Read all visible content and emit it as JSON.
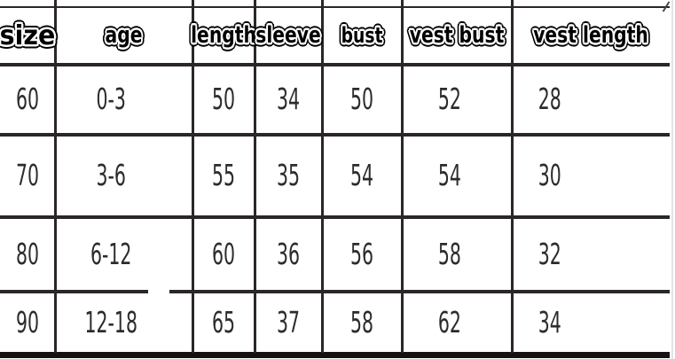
{
  "chart_data": {
    "type": "table",
    "columns": [
      "size",
      "age",
      "length",
      "sleeve",
      "bust",
      "vest bust",
      "vest length"
    ],
    "rows": [
      [
        "60",
        "0-3",
        "50",
        "34",
        "50",
        "52",
        "28"
      ],
      [
        "70",
        "3-6",
        "55",
        "35",
        "54",
        "54",
        "30"
      ],
      [
        "80",
        "6-12",
        "60",
        "36",
        "56",
        "58",
        "32"
      ],
      [
        "90",
        "12-18",
        "65",
        "37",
        "58",
        "62",
        "34"
      ]
    ],
    "layout": {
      "grid": "on",
      "header_style": "black text with white outline",
      "line_color": "#2b2627",
      "background": "#ffffff"
    }
  }
}
